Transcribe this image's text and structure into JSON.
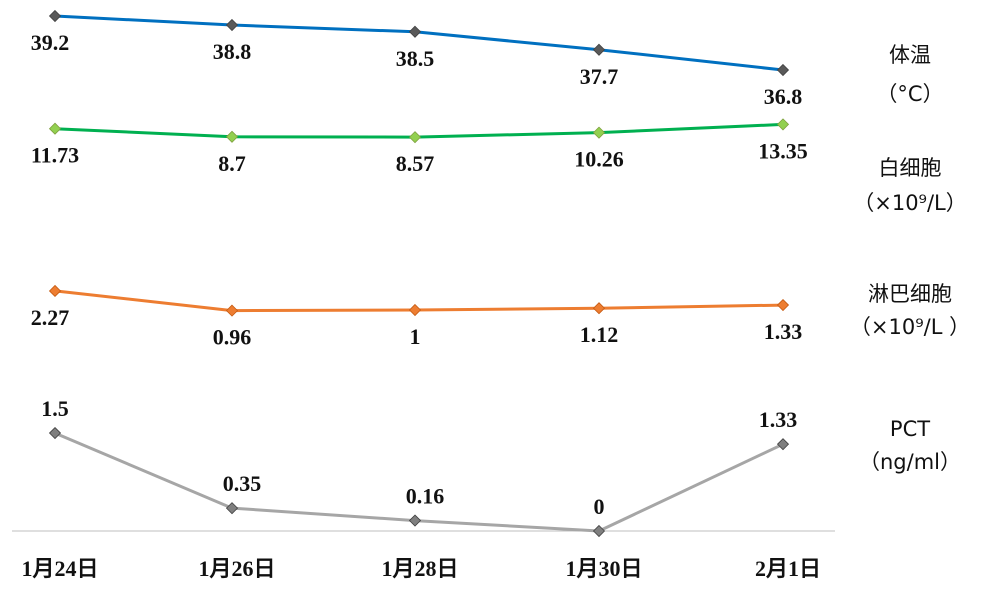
{
  "chart_data": {
    "type": "line",
    "categories": [
      "1月24日",
      "1月26日",
      "1月28日",
      "1月30日",
      "2月1日"
    ],
    "series": [
      {
        "name": "体温",
        "unit": "（°C）",
        "values": [
          39.2,
          38.8,
          38.5,
          37.7,
          36.8
        ],
        "labels": [
          "39.2",
          "38.8",
          "38.5",
          "37.7",
          "36.8"
        ],
        "color": "#0070c0",
        "marker_color": "#595959",
        "ylim": [
          36.4,
          39.6
        ]
      },
      {
        "name": "白细胞",
        "unit": "（×10⁹/L）",
        "values": [
          11.73,
          8.7,
          8.57,
          10.26,
          13.35
        ],
        "labels": [
          "11.73",
          "8.7",
          "8.57",
          "10.26",
          "13.35"
        ],
        "color": "#00b050",
        "marker_color": "#92d050",
        "ylim": [
          0,
          30
        ]
      },
      {
        "name": "淋巴细胞",
        "unit": "（×10⁹/L ）",
        "values": [
          2.27,
          0.96,
          1,
          1.12,
          1.33
        ],
        "labels": [
          "2.27",
          "0.96",
          "1",
          "1.12",
          "1.33"
        ],
        "color": "#ed7d31",
        "marker_color": "#ed7d31",
        "ylim": [
          -3,
          5
        ]
      },
      {
        "name": "PCT",
        "unit": "（ng/ml）",
        "values": [
          1.5,
          0.35,
          0.16,
          0,
          1.33
        ],
        "labels": [
          "1.5",
          "0.35",
          "0.16",
          "0",
          "1.33"
        ],
        "color": "#a6a6a6",
        "marker_color": "#7f7f7f",
        "ylim": [
          0,
          1.7
        ]
      }
    ],
    "grid": false,
    "legend": "right"
  }
}
